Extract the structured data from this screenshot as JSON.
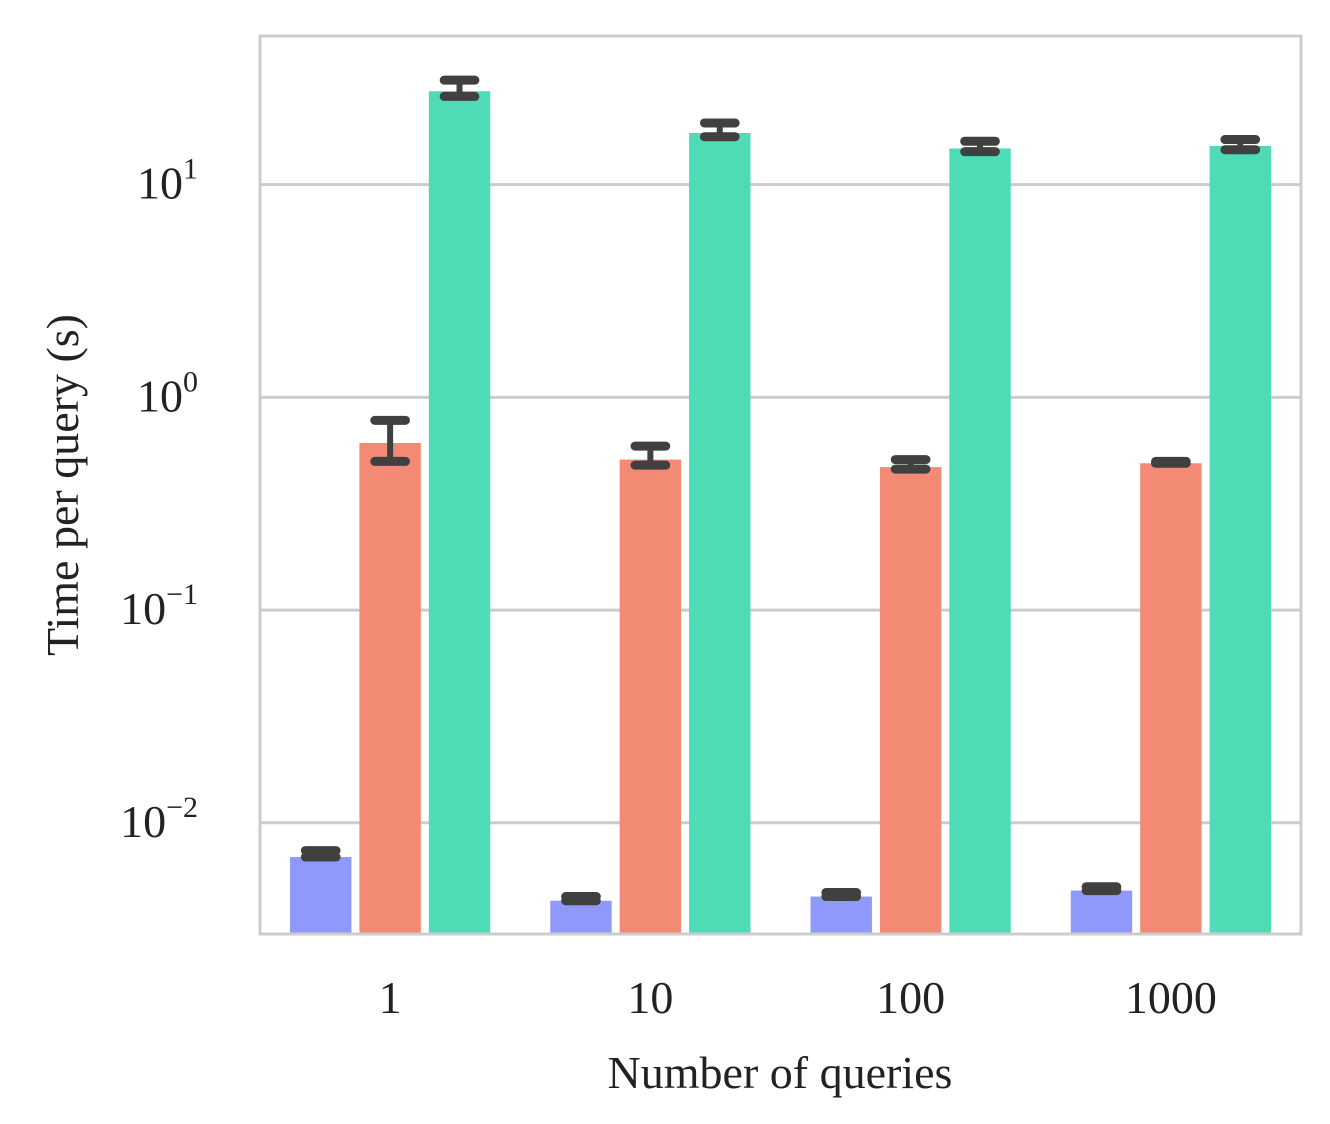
{
  "chart_data": {
    "type": "bar",
    "title": "",
    "xlabel": "Number of queries",
    "ylabel": "Time per query (s)",
    "yscale": "log",
    "ylim": [
      0.003,
      50
    ],
    "grid": {
      "y": true,
      "x": false
    },
    "categories": [
      "1",
      "10",
      "100",
      "1000"
    ],
    "yticks": [
      {
        "value": 0.01,
        "base": "10",
        "exp": "−2"
      },
      {
        "value": 0.1,
        "base": "10",
        "exp": "−1"
      },
      {
        "value": 1,
        "base": "10",
        "exp": "0"
      },
      {
        "value": 10,
        "base": "10",
        "exp": "1"
      }
    ],
    "series": [
      {
        "color": "#8f99fb",
        "values": [
          0.0069,
          0.0043,
          0.0045,
          0.0048
        ],
        "err_low": [
          0.0069,
          0.0043,
          0.0045,
          0.0048
        ],
        "err_high": [
          0.0074,
          0.0045,
          0.0047,
          0.005
        ]
      },
      {
        "color": "#f28a74",
        "values": [
          0.61,
          0.51,
          0.47,
          0.49
        ],
        "err_low": [
          0.5,
          0.48,
          0.46,
          0.49
        ],
        "err_high": [
          0.78,
          0.59,
          0.51,
          0.5
        ]
      },
      {
        "color": "#4ddcb5",
        "values": [
          27.5,
          17.5,
          14.8,
          15.2
        ],
        "err_low": [
          26.0,
          16.8,
          14.3,
          14.6
        ],
        "err_high": [
          31.0,
          19.5,
          16.0,
          16.3
        ]
      }
    ]
  }
}
